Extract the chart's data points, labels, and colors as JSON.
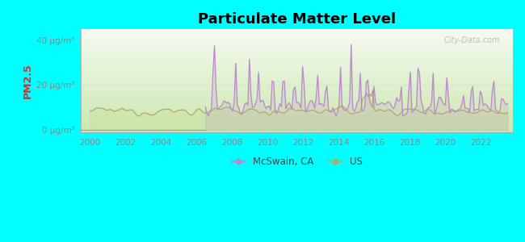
{
  "title": "Particulate Matter Level",
  "ylabel": "PM2.5",
  "ytick_labels": [
    "0 μg/m³",
    "20 μg/m³",
    "40 μg/m³"
  ],
  "ytick_values": [
    0,
    20,
    40
  ],
  "ylim": [
    -1,
    45
  ],
  "xlim": [
    1999.5,
    2023.8
  ],
  "xtick_values": [
    2000,
    2002,
    2004,
    2006,
    2008,
    2010,
    2012,
    2014,
    2016,
    2018,
    2020,
    2022
  ],
  "background_outer": "#00FFFF",
  "background_plot_bottom": "#d8efc8",
  "background_plot_top": "#f0f8ee",
  "mcswain_color": "#bb88cc",
  "us_color": "#b0aa70",
  "mcswain_fill": "#ddbbee",
  "us_fill": "#d8efc8",
  "mcswain_label": "McSwain, CA",
  "us_label": "US",
  "watermark": "City-Data.com",
  "ylabel_color": "#cc3333",
  "tick_color": "#888888",
  "grid_color": "#e8e8e8",
  "mcswain_start": 2006.5
}
